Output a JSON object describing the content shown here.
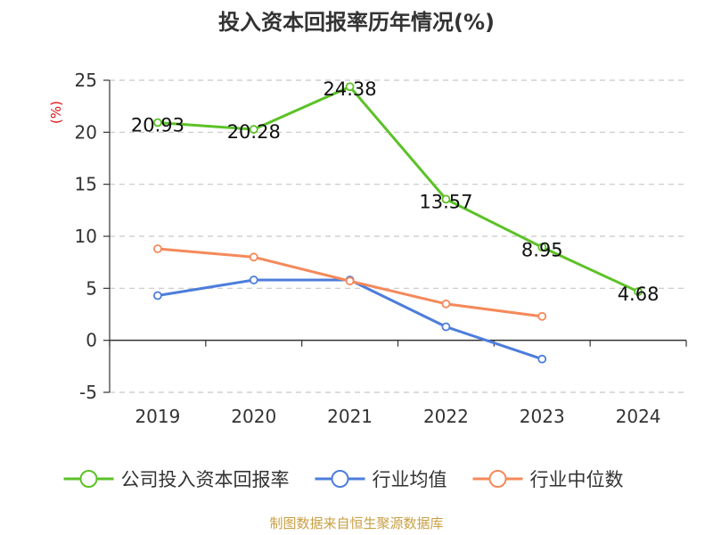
{
  "chart_data": {
    "type": "line",
    "title": "投入资本回报率历年情况(%)",
    "ylabel": "(%)",
    "xlabel": "",
    "ylim": [
      -5,
      25
    ],
    "yticks": [
      -5,
      0,
      5,
      10,
      15,
      20,
      25
    ],
    "categories": [
      "2019",
      "2020",
      "2021",
      "2022",
      "2023",
      "2024"
    ],
    "grid": true,
    "legend_position": "bottom",
    "series": [
      {
        "name": "公司投入资本回报率",
        "color": "#5cc227",
        "values": [
          20.93,
          20.28,
          24.38,
          13.57,
          8.95,
          4.68
        ],
        "labels": [
          "20.93",
          "20.28",
          "24.38",
          "13.57",
          "8.95",
          "4.68"
        ],
        "show_labels": true
      },
      {
        "name": "行业均值",
        "color": "#4d7ddb",
        "values": [
          4.3,
          5.8,
          5.8,
          1.3,
          -1.8,
          null
        ],
        "show_labels": false
      },
      {
        "name": "行业中位数",
        "color": "#f5895a",
        "values": [
          8.8,
          8.0,
          5.7,
          3.5,
          2.3,
          null
        ],
        "show_labels": false
      }
    ]
  },
  "source": "制图数据来自恒生聚源数据库"
}
